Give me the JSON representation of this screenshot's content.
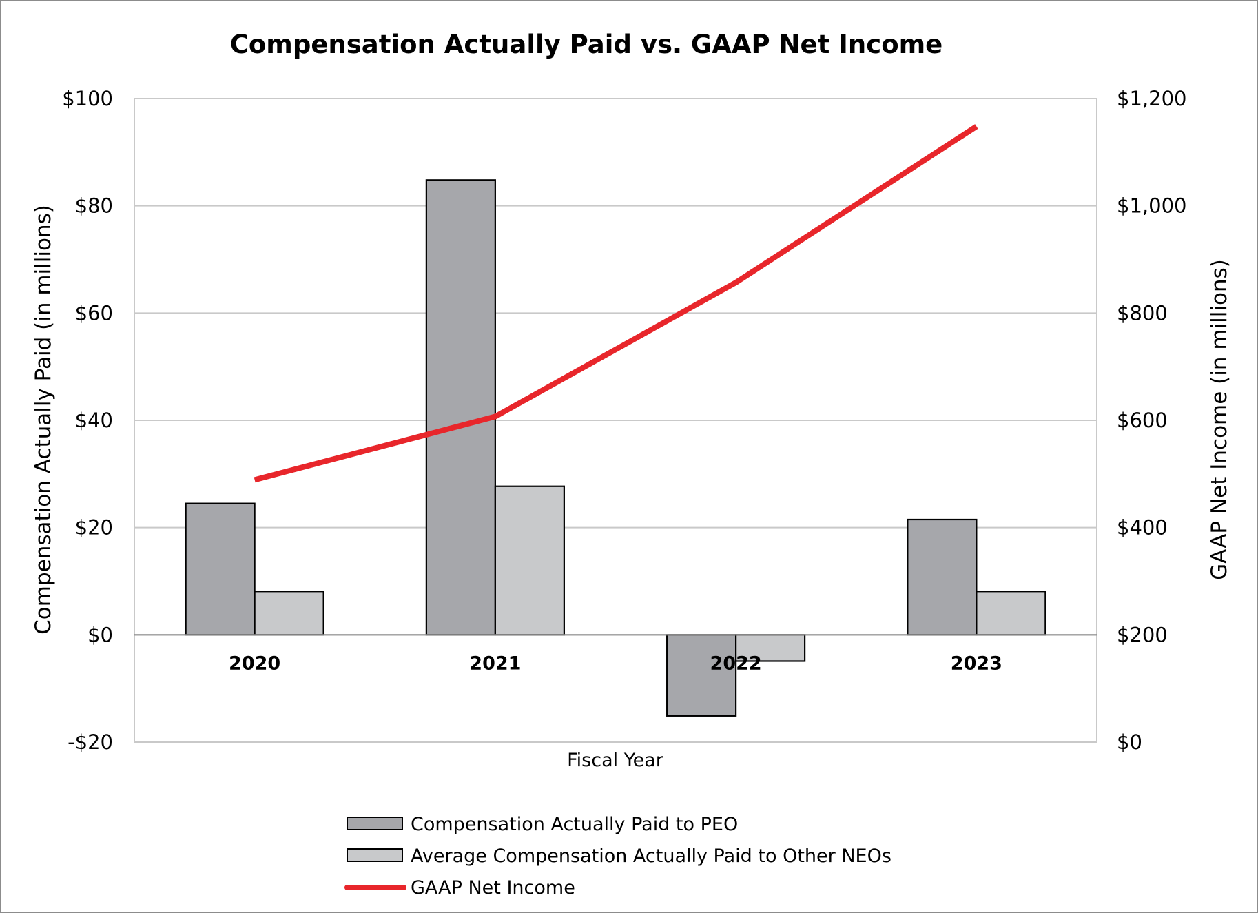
{
  "chart_data": {
    "type": "bar",
    "title": "Compensation Actually Paid vs. GAAP Net Income",
    "xlabel": "Fiscal Year",
    "ylabel": "Compensation Actually Paid (in millions)",
    "y2label": "GAAP Net Income (in millions)",
    "categories": [
      "2020",
      "2021",
      "2022",
      "2023"
    ],
    "ylim": [
      -20,
      100
    ],
    "y2lim": [
      0,
      1200
    ],
    "yticks": [
      -20,
      0,
      20,
      40,
      60,
      80,
      100
    ],
    "yticklabels": [
      "-$20",
      "$0",
      "$20",
      "$40",
      "$60",
      "$80",
      "$100"
    ],
    "y2ticks": [
      0,
      200,
      400,
      600,
      800,
      1000,
      1200
    ],
    "y2ticklabels": [
      "$0",
      "$200",
      "$400",
      "$600",
      "$800",
      "$1,000",
      "$1,200"
    ],
    "grid": true,
    "legend_position": "bottom",
    "series": [
      {
        "name": "Compensation Actually Paid to PEO",
        "kind": "bar",
        "axis": "left",
        "color": "#a6a7ab",
        "values": [
          24.5,
          84.8,
          -15.1,
          21.5
        ]
      },
      {
        "name": "Average Compensation Actually Paid to Other NEOs",
        "kind": "bar",
        "axis": "left",
        "color": "#c8c9cb",
        "values": [
          8.1,
          27.7,
          -4.9,
          8.1
        ]
      },
      {
        "name": "GAAP Net Income",
        "kind": "line",
        "axis": "right",
        "color": "#e8262b",
        "values": [
          489,
          607,
          857,
          1148
        ]
      }
    ]
  }
}
